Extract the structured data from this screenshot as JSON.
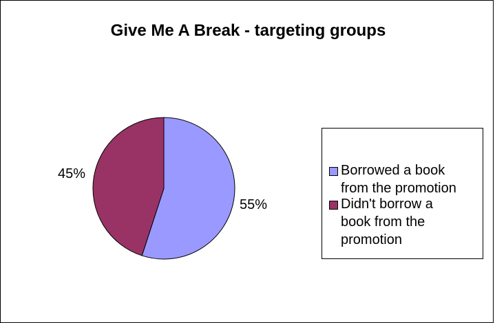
{
  "chart_data": {
    "type": "pie",
    "title": "Give Me A Break - targeting groups",
    "slices": [
      {
        "label": "Borrowed a book from the promotion",
        "value": 55,
        "value_label": "55%",
        "color": "#9999ff"
      },
      {
        "label": "Didn't borrow a book from the promotion",
        "value": 45,
        "value_label": "45%",
        "color": "#993366"
      }
    ],
    "legend": {
      "placement": "right",
      "entries": [
        {
          "label": "Borrowed a book\nfrom the promotion",
          "color": "#9999ff"
        },
        {
          "label": "Didn't borrow a\nbook from the\npromotion",
          "color": "#993366"
        }
      ]
    }
  }
}
